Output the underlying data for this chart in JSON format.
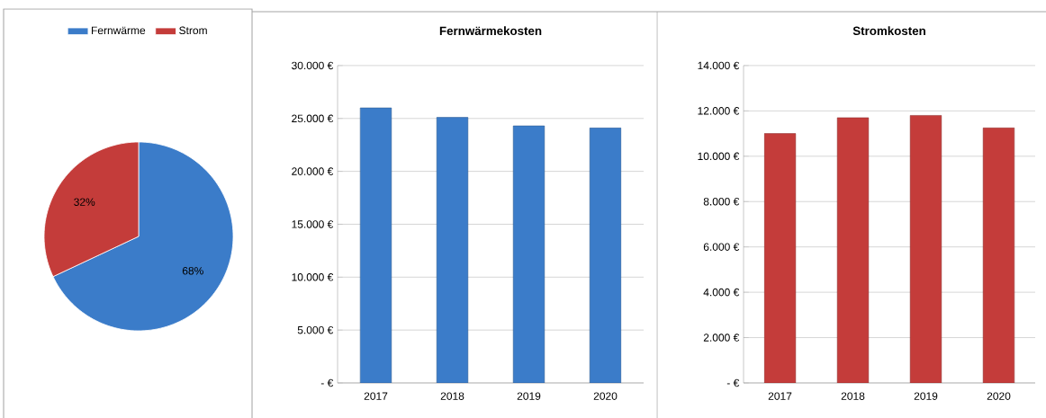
{
  "chart_data": [
    {
      "type": "pie",
      "categories": [
        "Fernwärme",
        "Strom"
      ],
      "values": [
        68,
        32
      ],
      "colors": [
        "#3b7cc9",
        "#c43c3a"
      ],
      "value_labels": [
        "68%",
        "32%"
      ],
      "legend": "top"
    },
    {
      "type": "bar",
      "title": "Fernwärmekosten",
      "categories": [
        "2017",
        "2018",
        "2019",
        "2020"
      ],
      "values": [
        26000,
        25100,
        24300,
        24100
      ],
      "color": "#3b7cc9",
      "ylim": [
        0,
        30000
      ],
      "yticks": [
        {
          "value": 0,
          "label": "-  €"
        },
        {
          "value": 5000,
          "label": "5.000 €"
        },
        {
          "value": 10000,
          "label": "10.000 €"
        },
        {
          "value": 15000,
          "label": "15.000 €"
        },
        {
          "value": 20000,
          "label": "20.000 €"
        },
        {
          "value": 25000,
          "label": "25.000 €"
        },
        {
          "value": 30000,
          "label": "30.000 €"
        }
      ],
      "grid": "y"
    },
    {
      "type": "bar",
      "title": "Stromkosten",
      "categories": [
        "2017",
        "2018",
        "2019",
        "2020"
      ],
      "values": [
        11000,
        11700,
        11800,
        11250
      ],
      "color": "#c43c3a",
      "ylim": [
        0,
        14000
      ],
      "yticks": [
        {
          "value": 0,
          "label": "-  €"
        },
        {
          "value": 2000,
          "label": "2.000 €"
        },
        {
          "value": 4000,
          "label": "4.000 €"
        },
        {
          "value": 6000,
          "label": "6.000 €"
        },
        {
          "value": 8000,
          "label": "8.000 €"
        },
        {
          "value": 10000,
          "label": "10.000 €"
        },
        {
          "value": 12000,
          "label": "12.000 €"
        },
        {
          "value": 14000,
          "label": "14.000 €"
        }
      ],
      "grid": "y"
    }
  ]
}
